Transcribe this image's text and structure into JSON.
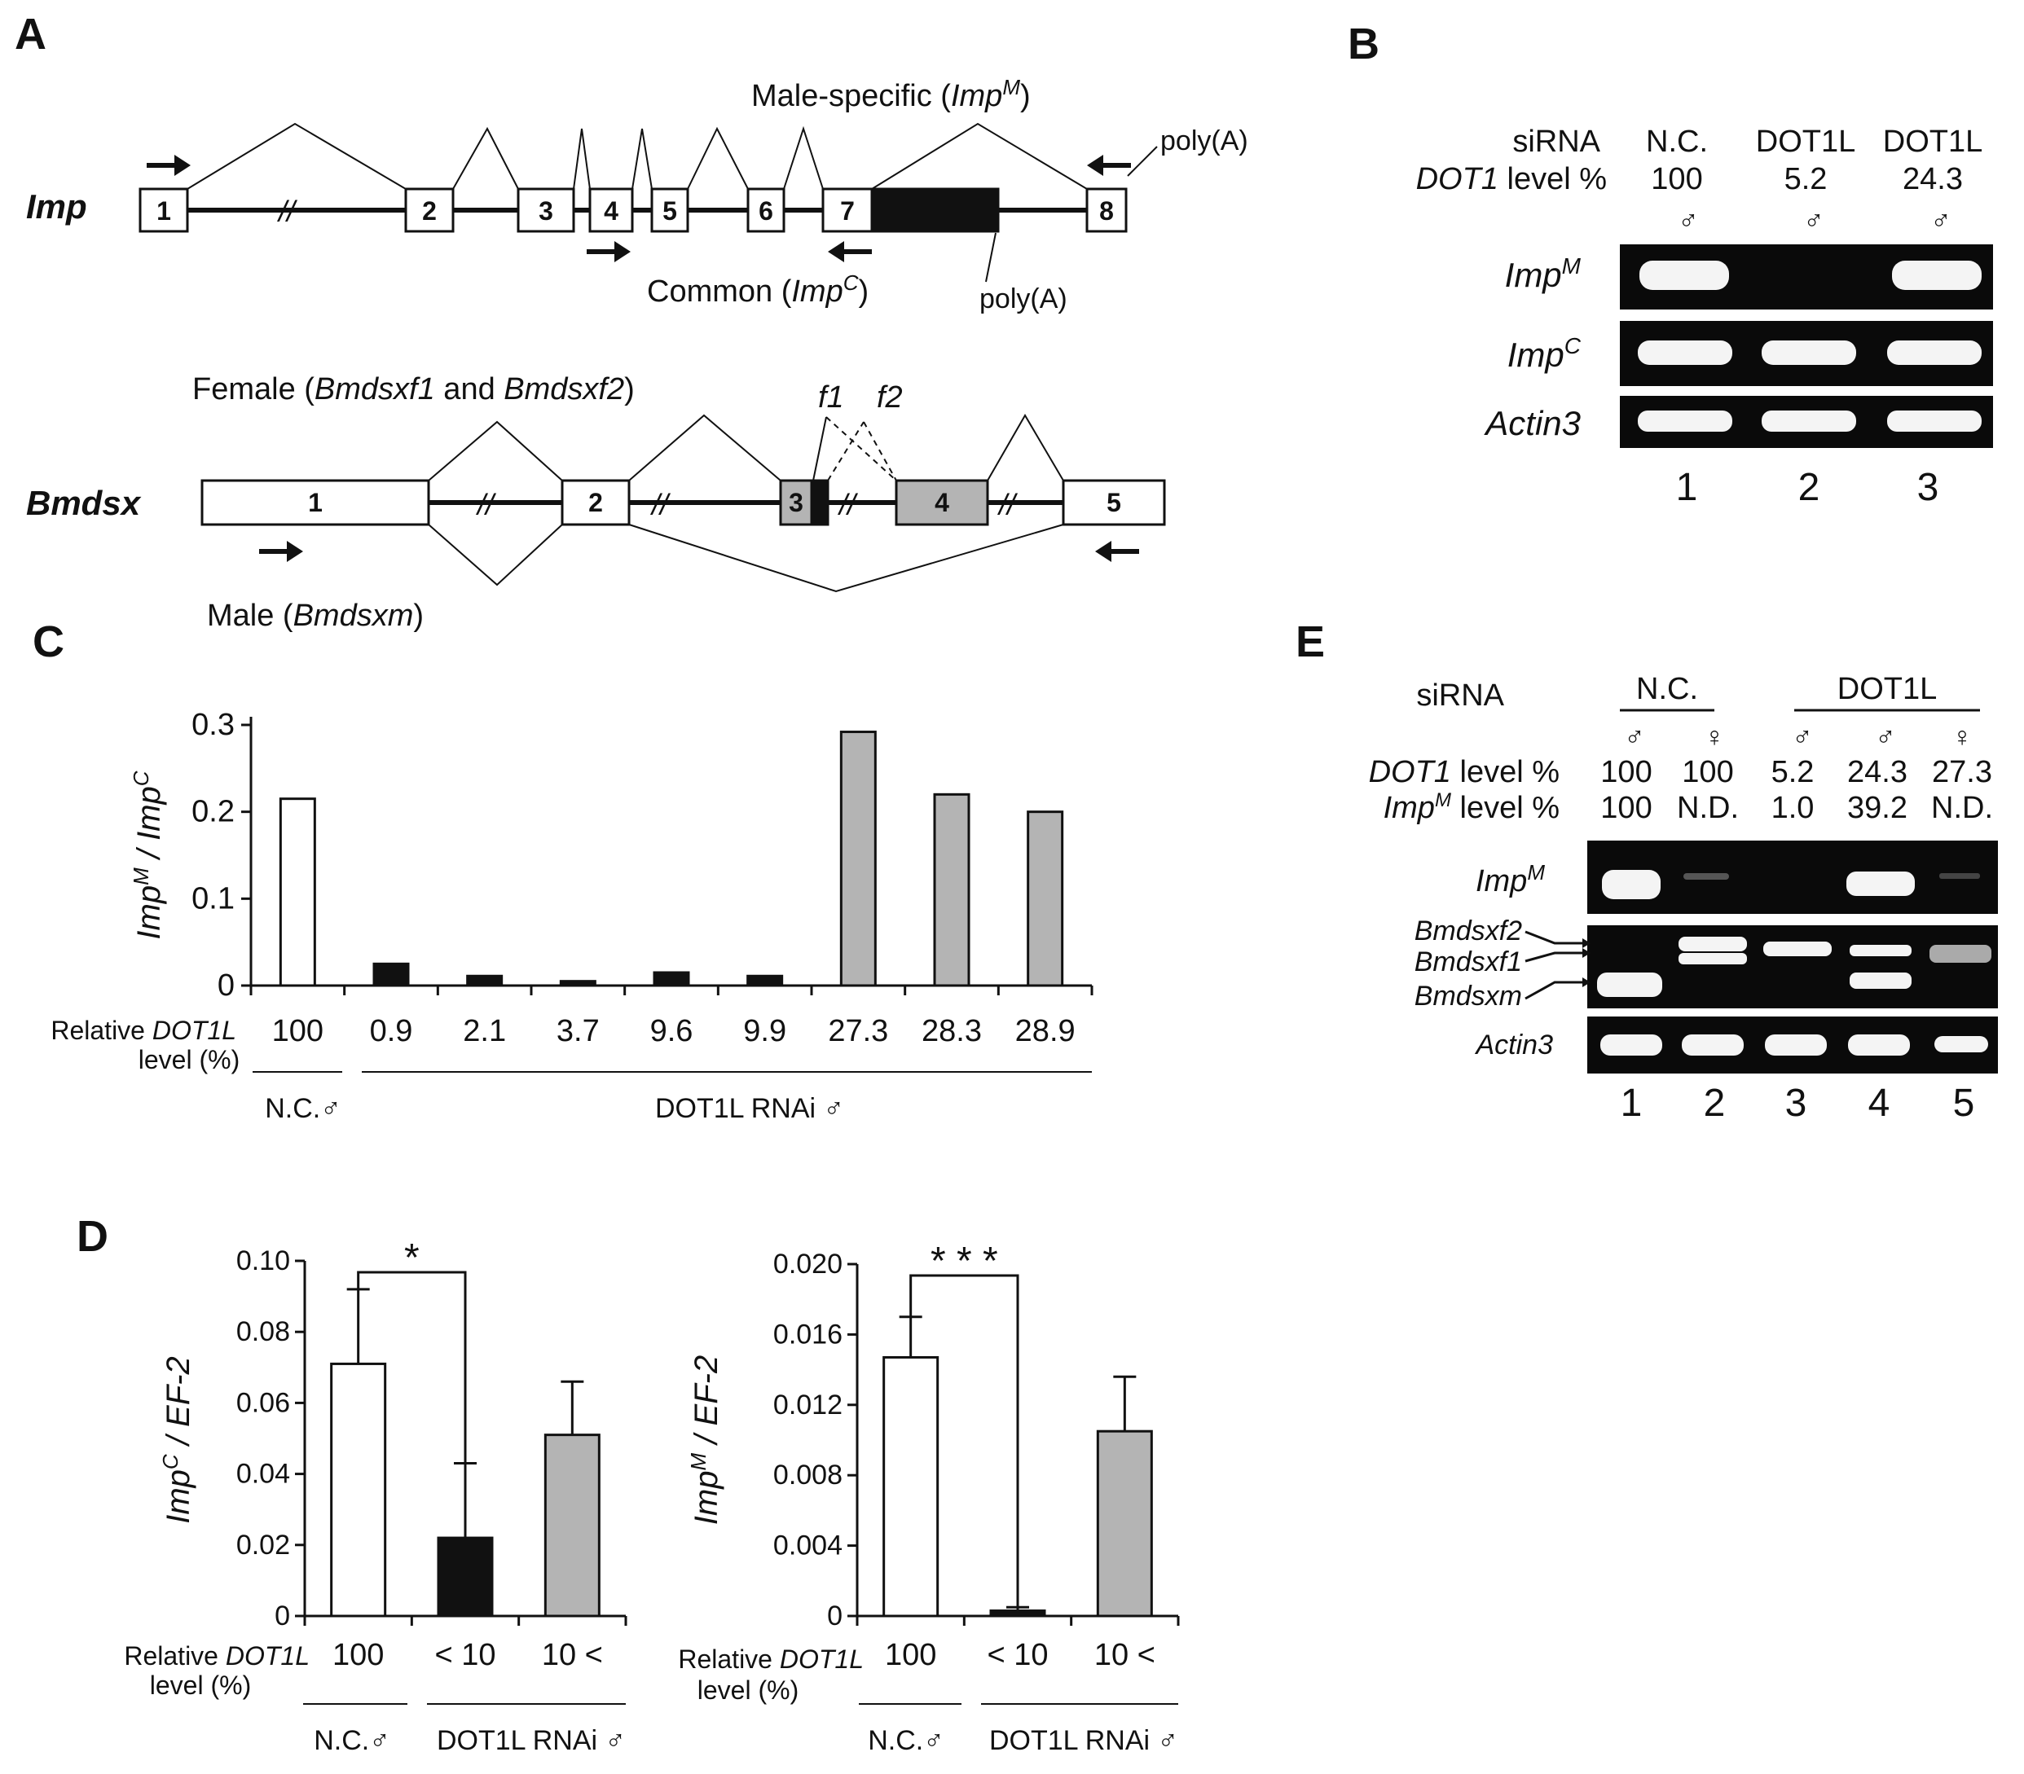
{
  "panel_labels": {
    "a": "A",
    "b": "B",
    "c": "C",
    "d": "D",
    "e": "E"
  },
  "colors": {
    "white_bar": "#ffffff",
    "black_bar": "#111111",
    "gray_bar": "#b4b4b4",
    "gel": "#0a0a0a",
    "band": "#f4f4f4"
  },
  "panel_a": {
    "imp_label": "Imp",
    "imp_exons": [
      "1",
      "2",
      "3",
      "4",
      "5",
      "6",
      "7",
      "8"
    ],
    "male_specific_label": "Male-specific (",
    "male_specific_italic": "Imp",
    "male_specific_sup": "M",
    "male_specific_close": ")",
    "polyA_top": "poly(A)",
    "polyA_bottom": "poly(A)",
    "common_label": "Common (",
    "common_italic": "Imp",
    "common_sup": "C",
    "common_close": ")",
    "bmdsx_label": "Bmdsx",
    "bmdsx_exons": [
      "1",
      "2",
      "3",
      "4",
      "5"
    ],
    "female_label_1": "Female (",
    "female_label_2": "Bmdsxf1",
    "female_label_3": " and ",
    "female_label_4": "Bmdsxf2",
    "female_label_5": ")",
    "f1": "f1",
    "f2": "f2",
    "male_label_1": "Male (",
    "male_label_2": "Bmdsxm",
    "male_label_3": ")",
    "break_mark": "//"
  },
  "panel_b": {
    "sirna_label": "siRNA",
    "dot1_label_italic": "DOT1",
    "dot1_label_rest": " level %",
    "lanes": [
      {
        "sirna": "N.C.",
        "dot1": "100",
        "sex": "♂",
        "num": "1"
      },
      {
        "sirna": "DOT1L",
        "dot1": "5.2",
        "sex": "♂",
        "num": "2"
      },
      {
        "sirna": "DOT1L",
        "dot1": "24.3",
        "sex": "♂",
        "num": "3"
      }
    ],
    "rows": [
      {
        "label": "Imp",
        "sup": "M"
      },
      {
        "label": "Imp",
        "sup": "C"
      },
      {
        "label": "Actin3",
        "sup": ""
      }
    ]
  },
  "panel_c": {
    "xlabel_line1_pre": "Relative ",
    "xlabel_line1_it": "DOT1L",
    "xlabel_line2": "level (%)",
    "group_nc": "N.C.♂",
    "group_rnai": "DOT1L RNAi ♂",
    "chart_data": {
      "type": "bar",
      "title": "",
      "ylabel": "ImpM / ImpC",
      "ylim": [
        0,
        0.3
      ],
      "yticks": [
        "0",
        "0.1",
        "0.2",
        "0.3"
      ],
      "categories": [
        "100",
        "0.9",
        "2.1",
        "3.7",
        "9.6",
        "9.9",
        "27.3",
        "28.3",
        "28.9"
      ],
      "values": [
        0.215,
        0.025,
        0.011,
        0.005,
        0.015,
        0.011,
        0.292,
        0.22,
        0.2
      ],
      "bar_colors": [
        "white",
        "black",
        "black",
        "black",
        "black",
        "black",
        "gray",
        "gray",
        "gray"
      ]
    }
  },
  "panel_d": {
    "xlabel_line1_pre": "Relative ",
    "xlabel_line1_it": "DOT1L",
    "xlabel_line2": "level (%)",
    "group_nc": "N.C.♂",
    "group_rnai": "DOT1L RNAi ♂",
    "left": {
      "ylabel_it": "Imp",
      "ylabel_sup": "C",
      "ylabel_rest": " / EF-2",
      "sig": "*",
      "chart_data": {
        "type": "bar",
        "ylim": [
          0,
          0.1
        ],
        "yticks": [
          "0",
          "0.02",
          "0.04",
          "0.06",
          "0.08",
          "0.10"
        ],
        "categories": [
          "100",
          "< 10",
          "10 <"
        ],
        "values": [
          0.071,
          0.022,
          0.051
        ],
        "errors": [
          0.021,
          0.021,
          0.015
        ],
        "bar_colors": [
          "white",
          "black",
          "gray"
        ]
      }
    },
    "right": {
      "ylabel_it": "Imp",
      "ylabel_sup": "M",
      "ylabel_rest": " / EF-2",
      "sig": "* * *",
      "chart_data": {
        "type": "bar",
        "ylim": [
          0,
          0.02
        ],
        "yticks": [
          "0",
          "0.004",
          "0.008",
          "0.012",
          "0.016",
          "0.020"
        ],
        "categories": [
          "100",
          "< 10",
          "10 <"
        ],
        "values": [
          0.0147,
          0.0003,
          0.0105
        ],
        "errors": [
          0.0023,
          0.0002,
          0.0031
        ],
        "bar_colors": [
          "white",
          "black",
          "gray"
        ]
      }
    }
  },
  "panel_e": {
    "sirna_label": "siRNA",
    "group_nc": "N.C.",
    "group_dot1l": "DOT1L",
    "dot1_label_italic": "DOT1",
    "dot1_label_rest": " level %",
    "imp_label_italic": "Imp",
    "imp_label_sup": "M",
    "imp_label_rest": " level %",
    "lanes": [
      {
        "sex": "♂",
        "dot1": "100",
        "imp": "100",
        "num": "1"
      },
      {
        "sex": "♀",
        "dot1": "100",
        "imp": "N.D.",
        "num": "2"
      },
      {
        "sex": "♂",
        "dot1": "5.2",
        "imp": "1.0",
        "num": "3"
      },
      {
        "sex": "♂",
        "dot1": "24.3",
        "imp": "39.2",
        "num": "4"
      },
      {
        "sex": "♀",
        "dot1": "27.3",
        "imp": "N.D.",
        "num": "5"
      }
    ],
    "row_impm": "Imp",
    "row_impm_sup": "M",
    "bmdsxf2": "Bmdsxf2",
    "bmdsxf1": "Bmdsxf1",
    "bmdsxm": "Bmdsxm",
    "actin3": "Actin3"
  }
}
